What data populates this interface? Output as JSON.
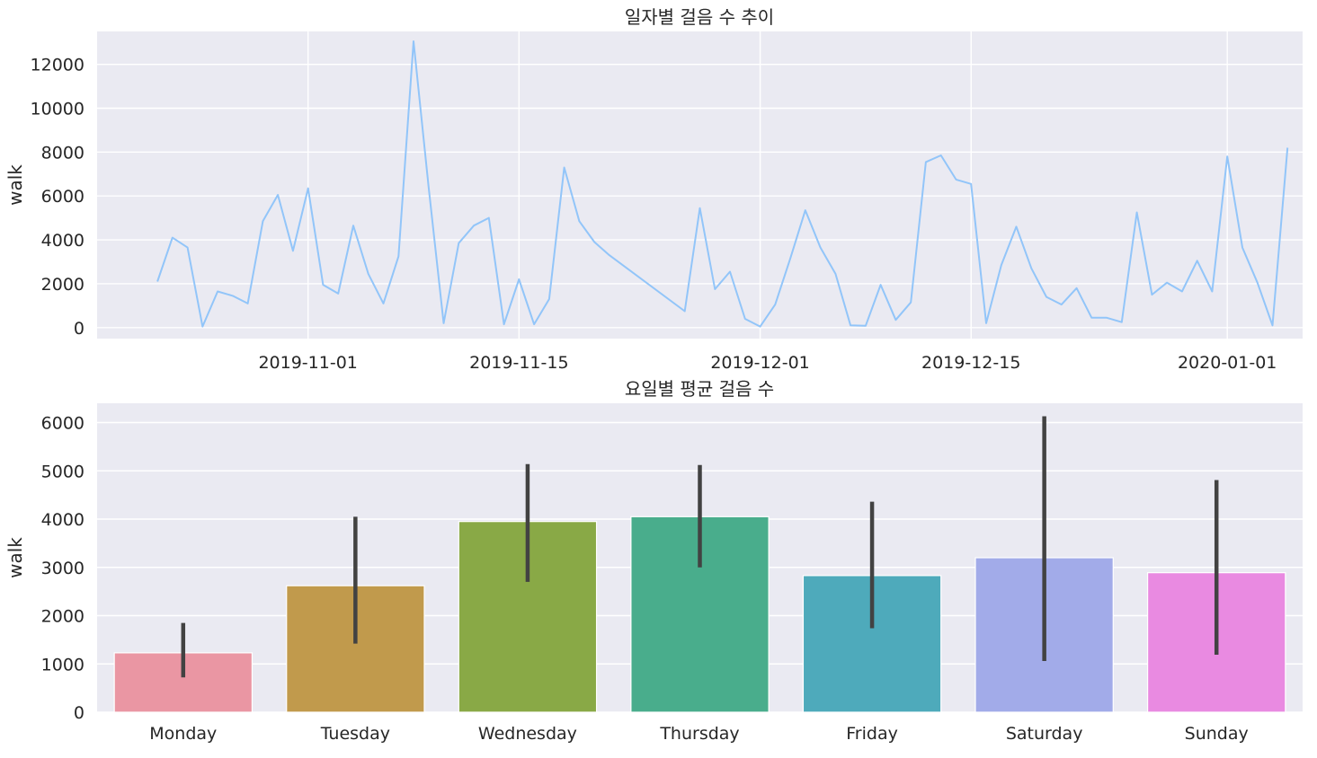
{
  "chart_data": [
    {
      "type": "line",
      "title": "일자별 걸음 수 추이",
      "xlabel": "",
      "ylabel": "walk",
      "ylim": [
        -500,
        13500
      ],
      "yticks": [
        0,
        2000,
        4000,
        6000,
        8000,
        10000,
        12000
      ],
      "xlim": [
        "2019-10-18",
        "2020-01-06"
      ],
      "xticks": [
        "2019-11-01",
        "2019-11-15",
        "2019-12-01",
        "2019-12-15",
        "2020-01-01"
      ],
      "grid": true,
      "color": "#92c5f9",
      "x": [
        "2019-10-22",
        "2019-10-23",
        "2019-10-24",
        "2019-10-25",
        "2019-10-26",
        "2019-10-27",
        "2019-10-28",
        "2019-10-29",
        "2019-10-30",
        "2019-10-31",
        "2019-11-01",
        "2019-11-02",
        "2019-11-03",
        "2019-11-04",
        "2019-11-05",
        "2019-11-06",
        "2019-11-07",
        "2019-11-08",
        "2019-11-09",
        "2019-11-10",
        "2019-11-11",
        "2019-11-12",
        "2019-11-13",
        "2019-11-14",
        "2019-11-15",
        "2019-11-16",
        "2019-11-17",
        "2019-11-18",
        "2019-11-19",
        "2019-11-20",
        "2019-11-21",
        "2019-11-26",
        "2019-11-27",
        "2019-11-28",
        "2019-11-29",
        "2019-11-30",
        "2019-12-01",
        "2019-12-02",
        "2019-12-03",
        "2019-12-04",
        "2019-12-05",
        "2019-12-06",
        "2019-12-07",
        "2019-12-08",
        "2019-12-09",
        "2019-12-10",
        "2019-12-11",
        "2019-12-12",
        "2019-12-13",
        "2019-12-14",
        "2019-12-15",
        "2019-12-16",
        "2019-12-17",
        "2019-12-18",
        "2019-12-19",
        "2019-12-20",
        "2019-12-21",
        "2019-12-22",
        "2019-12-23",
        "2019-12-24",
        "2019-12-25",
        "2019-12-26",
        "2019-12-27",
        "2019-12-28",
        "2019-12-29",
        "2019-12-30",
        "2019-12-31",
        "2020-01-01",
        "2020-01-02",
        "2020-01-03",
        "2020-01-04",
        "2020-01-05"
      ],
      "y": [
        2100,
        4100,
        3650,
        50,
        1650,
        1450,
        1100,
        4850,
        6050,
        3500,
        6350,
        1950,
        1550,
        4650,
        2450,
        1100,
        3250,
        13050,
        6400,
        200,
        3850,
        4650,
        5000,
        150,
        2200,
        150,
        1300,
        7300,
        4850,
        3900,
        3300,
        750,
        5450,
        1750,
        2550,
        400,
        50,
        1050,
        3150,
        5350,
        3650,
        2450,
        100,
        80,
        1950,
        350,
        1150,
        7550,
        7850,
        6750,
        6550,
        200,
        2850,
        4600,
        2700,
        1400,
        1050,
        1800,
        450,
        450,
        250,
        5250,
        1500,
        2050,
        1650,
        3050,
        1650,
        7800,
        3650,
        2050,
        100,
        8200
      ]
    },
    {
      "type": "bar",
      "title": "요일별 평균 걸음 수",
      "xlabel": "",
      "ylabel": "walk",
      "ylim": [
        0,
        6400
      ],
      "yticks": [
        0,
        1000,
        2000,
        3000,
        4000,
        5000,
        6000
      ],
      "grid": true,
      "categories": [
        "Monday",
        "Tuesday",
        "Wednesday",
        "Thursday",
        "Friday",
        "Saturday",
        "Sunday"
      ],
      "values": [
        1230,
        2620,
        3950,
        4050,
        2830,
        3200,
        2890
      ],
      "error_low": [
        720,
        1420,
        2700,
        3000,
        1740,
        1060,
        1190
      ],
      "error_high": [
        1850,
        4050,
        5140,
        5120,
        4360,
        6130,
        4810
      ],
      "colors": [
        "#ea96a3",
        "#c19a4c",
        "#89a946",
        "#49ad8c",
        "#4eaabb",
        "#a2abe9",
        "#e98ae1"
      ]
    }
  ]
}
